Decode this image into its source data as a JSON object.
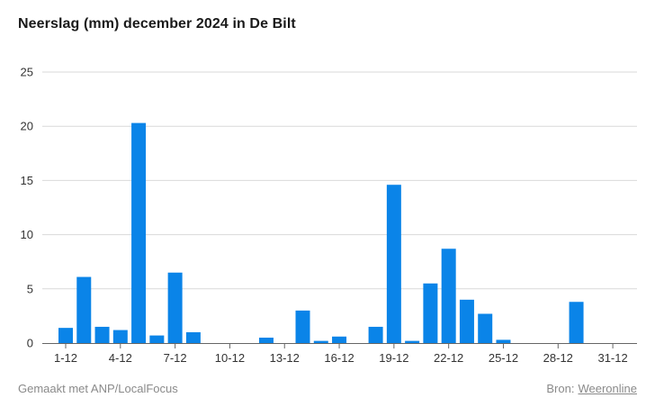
{
  "page": {
    "title": "Neerslag (mm) december 2024 in De Bilt",
    "credit": "Gemaakt met ANP/LocalFocus",
    "source_label": "Bron:",
    "source_link": "Weeronline"
  },
  "colors": {
    "bar": "#0a84e8",
    "grid": "#d9d9d9",
    "axis": "#666666"
  },
  "chart_data": {
    "type": "bar",
    "title": "Neerslag (mm) december 2024 in De Bilt",
    "xlabel": "",
    "ylabel": "",
    "ylim": [
      0,
      25
    ],
    "yticks": [
      0,
      5,
      10,
      15,
      20,
      25
    ],
    "grid": true,
    "categories": [
      "1-12",
      "2-12",
      "3-12",
      "4-12",
      "5-12",
      "6-12",
      "7-12",
      "8-12",
      "9-12",
      "10-12",
      "11-12",
      "12-12",
      "13-12",
      "14-12",
      "15-12",
      "16-12",
      "17-12",
      "18-12",
      "19-12",
      "20-12",
      "21-12",
      "22-12",
      "23-12",
      "24-12",
      "25-12",
      "26-12",
      "27-12",
      "28-12",
      "29-12",
      "30-12",
      "31-12"
    ],
    "xtick_labels": [
      "1-12",
      "4-12",
      "7-12",
      "10-12",
      "13-12",
      "16-12",
      "19-12",
      "22-12",
      "25-12",
      "28-12",
      "31-12"
    ],
    "values": [
      1.4,
      6.1,
      1.5,
      1.2,
      20.3,
      0.7,
      6.5,
      1.0,
      0,
      0,
      0,
      0.5,
      0,
      3.0,
      0.2,
      0.6,
      0,
      1.5,
      14.6,
      0.2,
      5.5,
      8.7,
      4.0,
      2.7,
      0.3,
      0,
      0,
      0,
      3.8,
      0,
      0
    ]
  }
}
